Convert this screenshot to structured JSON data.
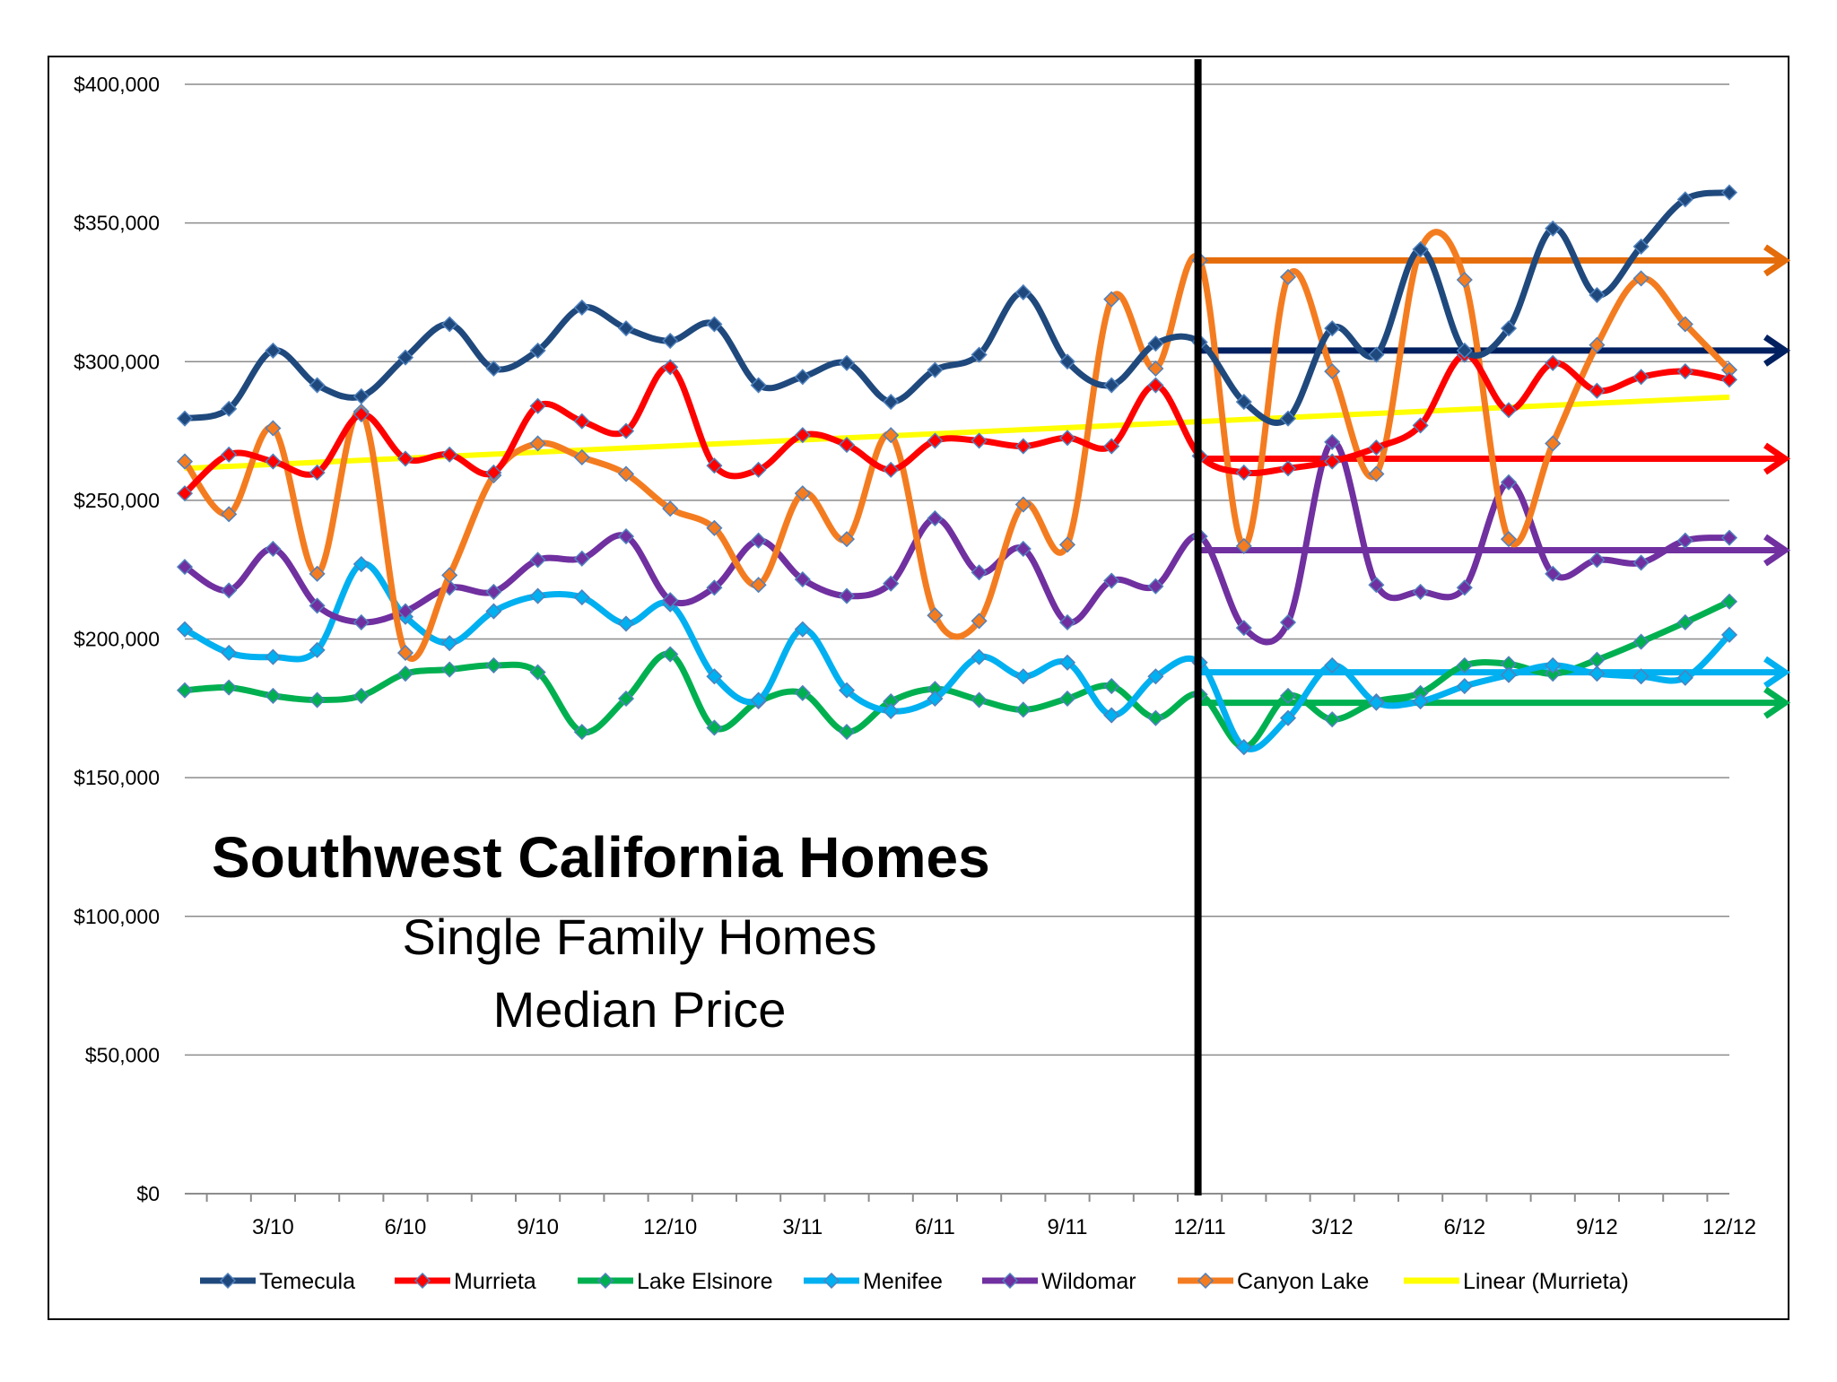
{
  "chart_data": {
    "type": "line",
    "title": "Southwest California Homes",
    "subtitle_lines": [
      "Single Family Homes",
      "Median Price"
    ],
    "x_tick_labels": [
      "3/10",
      "6/10",
      "9/10",
      "12/10",
      "3/11",
      "6/11",
      "9/11",
      "12/11",
      "3/12",
      "6/12",
      "9/12",
      "12/12"
    ],
    "x": [
      "1/10",
      "2/10",
      "3/10",
      "4/10",
      "5/10",
      "6/10",
      "7/10",
      "8/10",
      "9/10",
      "10/10",
      "11/10",
      "12/10",
      "1/11",
      "2/11",
      "3/11",
      "4/11",
      "5/11",
      "6/11",
      "7/11",
      "8/11",
      "9/11",
      "10/11",
      "11/11",
      "12/11",
      "1/12",
      "2/12",
      "3/12",
      "4/12",
      "5/12",
      "6/12",
      "7/12",
      "8/12",
      "9/12",
      "10/12",
      "11/12",
      "12/12"
    ],
    "y_tick_labels": [
      "$0",
      "$50,000",
      "$100,000",
      "$150,000",
      "$200,000",
      "$250,000",
      "$300,000",
      "$350,000",
      "$400,000"
    ],
    "ylim": [
      0,
      400000
    ],
    "y_tick_step": 50000,
    "grid": "horizontal",
    "legend_placement": "bottom",
    "colors": {
      "Temecula": "#1f497d",
      "Murrieta": "#ff0000",
      "Lake Elsinore": "#00b050",
      "Menifee": "#00b0f0",
      "Wildomar": "#7030a0",
      "Canyon Lake": "#f47c20",
      "Linear (Murrieta)": "#ffff00",
      "divider": "#000000",
      "grid": "#8c8c8c"
    },
    "series": [
      {
        "name": "Temecula",
        "values": [
          279500,
          283000,
          304000,
          291500,
          287500,
          301500,
          313500,
          297500,
          304000,
          319500,
          312000,
          307500,
          313500,
          291500,
          294500,
          299500,
          285500,
          297000,
          302500,
          325000,
          300000,
          291500,
          306500,
          307000,
          285500,
          279500,
          312000,
          302500,
          340500,
          304000,
          312000,
          348000,
          324000,
          341500,
          358500,
          361000
        ]
      },
      {
        "name": "Murrieta",
        "values": [
          252500,
          266500,
          264000,
          260000,
          281000,
          265000,
          266500,
          260000,
          284000,
          278500,
          275000,
          298000,
          262500,
          261000,
          273500,
          270000,
          261000,
          271500,
          271500,
          269500,
          272500,
          269500,
          291500,
          266000,
          260000,
          261500,
          264000,
          269000,
          277000,
          302500,
          282500,
          299500,
          289500,
          294500,
          296500,
          293500
        ]
      },
      {
        "name": "Lake Elsinore",
        "values": [
          181500,
          182500,
          179500,
          178000,
          179500,
          187500,
          189000,
          190500,
          188000,
          166500,
          178500,
          194500,
          168000,
          177500,
          180500,
          166500,
          177500,
          182000,
          178000,
          174500,
          178500,
          183000,
          171500,
          180000,
          161000,
          179500,
          171000,
          177500,
          180500,
          190500,
          191000,
          187500,
          192500,
          199000,
          206000,
          213500
        ]
      },
      {
        "name": "Menifee",
        "values": [
          203500,
          195000,
          193500,
          196000,
          227000,
          208000,
          198500,
          210000,
          215500,
          215000,
          205500,
          212500,
          186500,
          178000,
          203500,
          181500,
          174000,
          178500,
          193500,
          186500,
          191500,
          172500,
          186500,
          191500,
          161000,
          171500,
          190500,
          177000,
          177500,
          183000,
          187000,
          190500,
          187500,
          186500,
          186000,
          201500
        ]
      },
      {
        "name": "Wildomar",
        "values": [
          226000,
          217500,
          232500,
          212000,
          206000,
          210000,
          218500,
          217000,
          228500,
          229000,
          237000,
          214000,
          218500,
          235500,
          221500,
          215500,
          220000,
          243500,
          224000,
          232500,
          206000,
          221000,
          219000,
          237000,
          204000,
          206000,
          271000,
          219500,
          217000,
          218500,
          256500,
          223500,
          228500,
          227500,
          235500,
          236500
        ]
      },
      {
        "name": "Canyon Lake",
        "values": [
          264000,
          245000,
          276000,
          223500,
          282000,
          195000,
          223000,
          259000,
          270500,
          265500,
          259500,
          247000,
          240000,
          219500,
          252500,
          236000,
          273500,
          208500,
          206500,
          248500,
          234000,
          322500,
          297500,
          336500,
          233500,
          330500,
          296500,
          259500,
          340500,
          329500,
          236000,
          270500,
          306000,
          330000,
          313500,
          297000
        ]
      },
      {
        "name": "Linear (Murrieta)",
        "values": [
          261500,
          262250,
          262950,
          263700,
          264450,
          265200,
          265900,
          266650,
          267400,
          268100,
          268850,
          269600,
          270300,
          271050,
          271800,
          272550,
          273250,
          274000,
          274750,
          275450,
          276200,
          276950,
          277650,
          278400,
          279150,
          279850,
          280600,
          281350,
          282100,
          282800,
          283550,
          284300,
          285000,
          285750,
          286500,
          287200
        ]
      }
    ],
    "reference_lines": [
      {
        "series": "Canyon Lake",
        "value": 336500,
        "from": "12/11"
      },
      {
        "series": "Temecula",
        "value": 304000,
        "from": "12/11"
      },
      {
        "series": "Murrieta",
        "value": 265000,
        "from": "12/11"
      },
      {
        "series": "Wildomar",
        "value": 232000,
        "from": "12/11"
      },
      {
        "series": "Menifee",
        "value": 188000,
        "from": "12/11"
      },
      {
        "series": "Lake Elsinore",
        "value": 177000,
        "from": "12/11"
      }
    ],
    "vertical_divider_at": "12/11",
    "legend": [
      "Temecula",
      "Murrieta",
      "Lake Elsinore",
      "Menifee",
      "Wildomar",
      "Canyon Lake",
      "Linear (Murrieta)"
    ]
  }
}
